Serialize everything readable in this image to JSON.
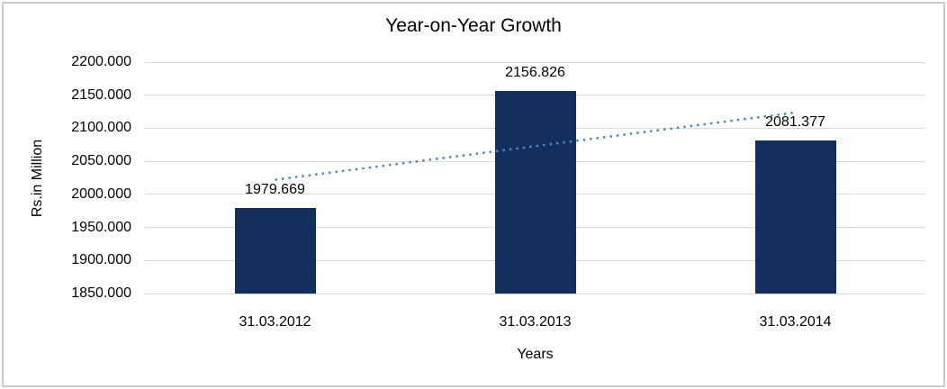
{
  "frame": {
    "border_color": "#C9C9C9"
  },
  "chart_data": {
    "type": "bar",
    "title": "Year-on-Year Growth",
    "xlabel": "Years",
    "ylabel": "Rs.in Million",
    "categories": [
      "31.03.2012",
      "31.03.2013",
      "31.03.2014"
    ],
    "values": [
      1979.669,
      2156.826,
      2081.377
    ],
    "data_labels": [
      "1979.669",
      "2156.826",
      "2081.377"
    ],
    "ylim": [
      1850,
      2200
    ],
    "ytick_step": 50,
    "ytick_labels": [
      "1850.000",
      "1900.000",
      "1950.000",
      "2000.000",
      "2050.000",
      "2100.000",
      "2150.000",
      "2200.000"
    ],
    "grid": true,
    "legend": "none",
    "bar_color": "#122F5E",
    "gridline_color": "#D9D9D9",
    "text_color": "#000000",
    "trendline": {
      "style": "dotted",
      "color": "#4F86C8",
      "start_value": 2022.1,
      "end_value": 2123.8
    }
  }
}
